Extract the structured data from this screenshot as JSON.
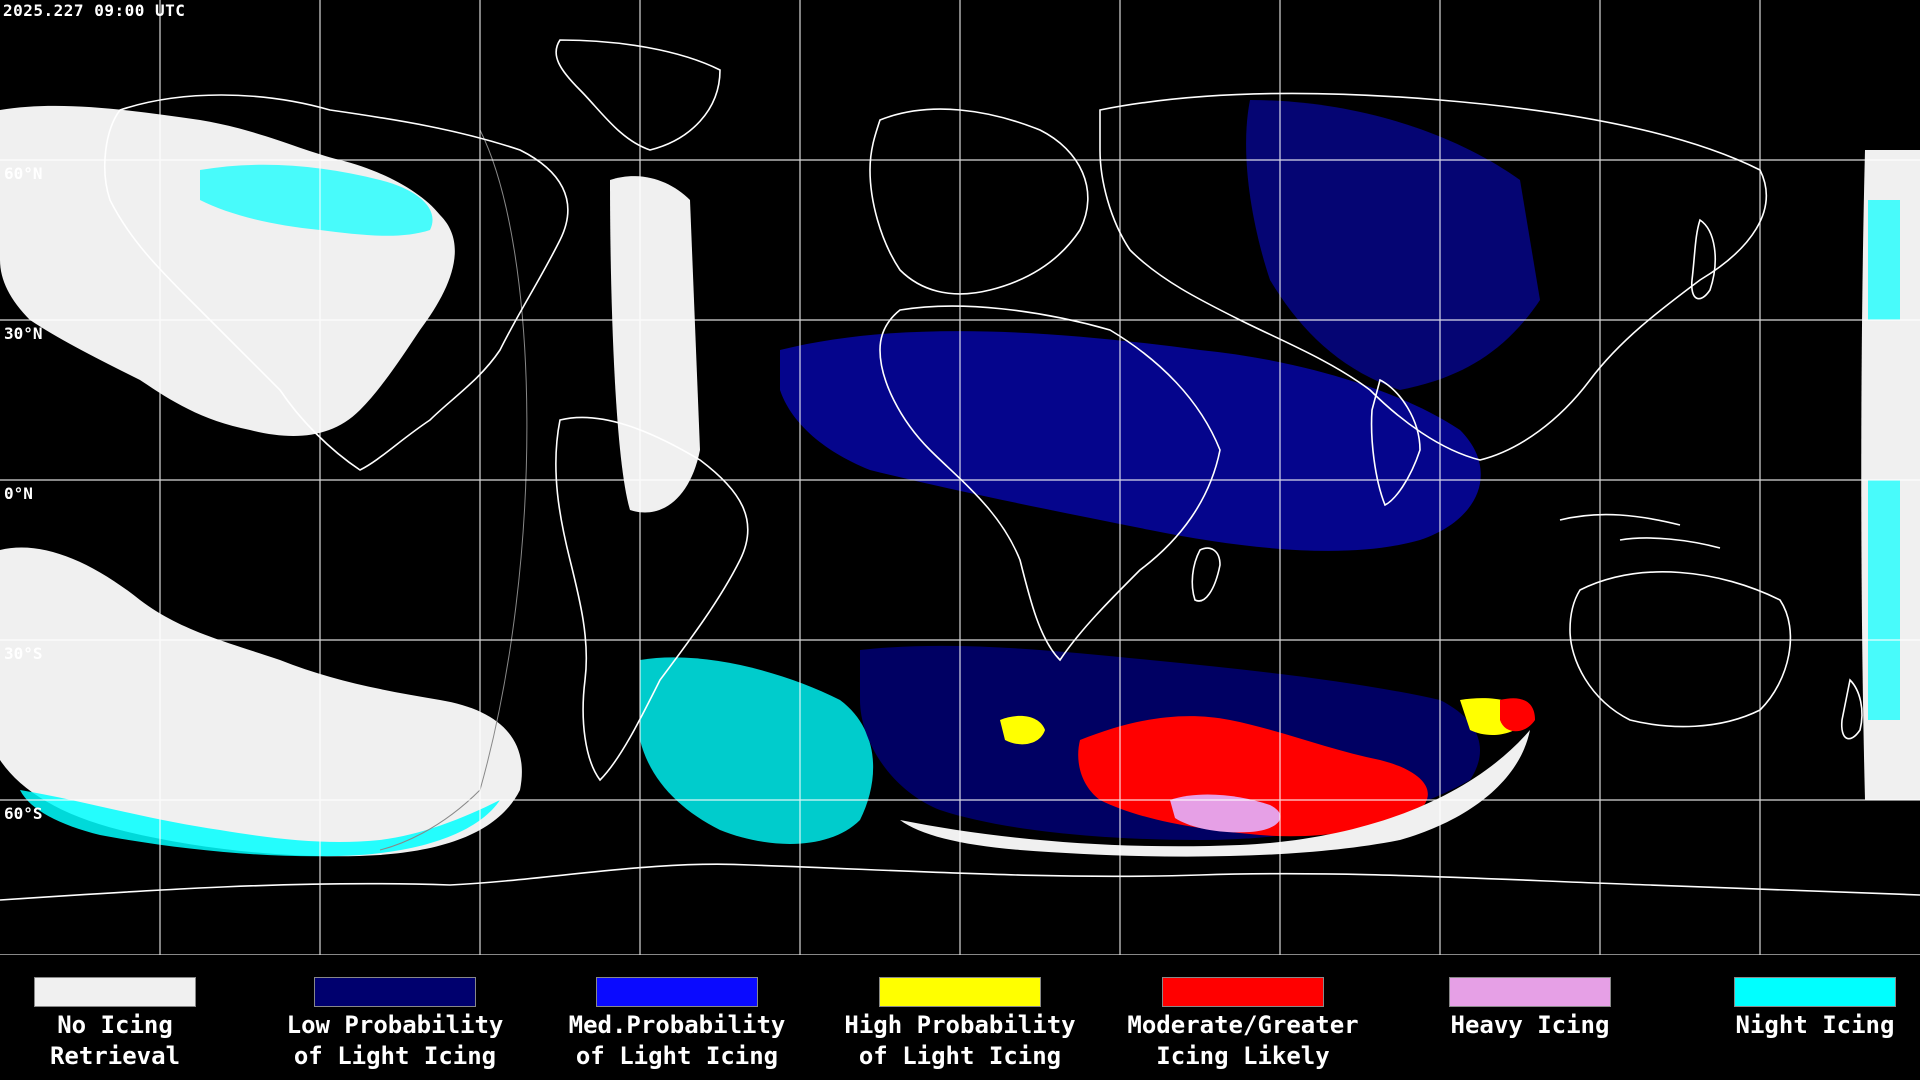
{
  "timestamp": "2025.227 09:00 UTC",
  "latitude_labels": [
    "60°N",
    "30°N",
    "0°N",
    "30°S",
    "60°S"
  ],
  "legend": [
    {
      "line1": "No Icing",
      "line2": "Retrieval",
      "color": "#f0f0f0"
    },
    {
      "line1": "Low Probability",
      "line2": "of Light Icing",
      "color": "#00006e"
    },
    {
      "line1": "Med.Probability",
      "line2": "of Light Icing",
      "color": "#0a0aff"
    },
    {
      "line1": "High Probability",
      "line2": "of Light Icing",
      "color": "#ffff00"
    },
    {
      "line1": "Moderate/Greater",
      "line2": "Icing Likely",
      "color": "#ff0000"
    },
    {
      "line1": "Heavy Icing",
      "line2": "",
      "color": "#e6a0e6"
    },
    {
      "line1": "Night Icing",
      "line2": "",
      "color": "#00ffff"
    }
  ],
  "colors": {
    "background": "#000000",
    "grid": "#ffffff",
    "coastline": "#ffffff",
    "no_icing": "#f0f0f0",
    "low_prob": "#00006e",
    "med_prob": "#0a0aff",
    "high_prob": "#ffff00",
    "moderate": "#ff0000",
    "heavy": "#e6a0e6",
    "night": "#00ffff"
  }
}
